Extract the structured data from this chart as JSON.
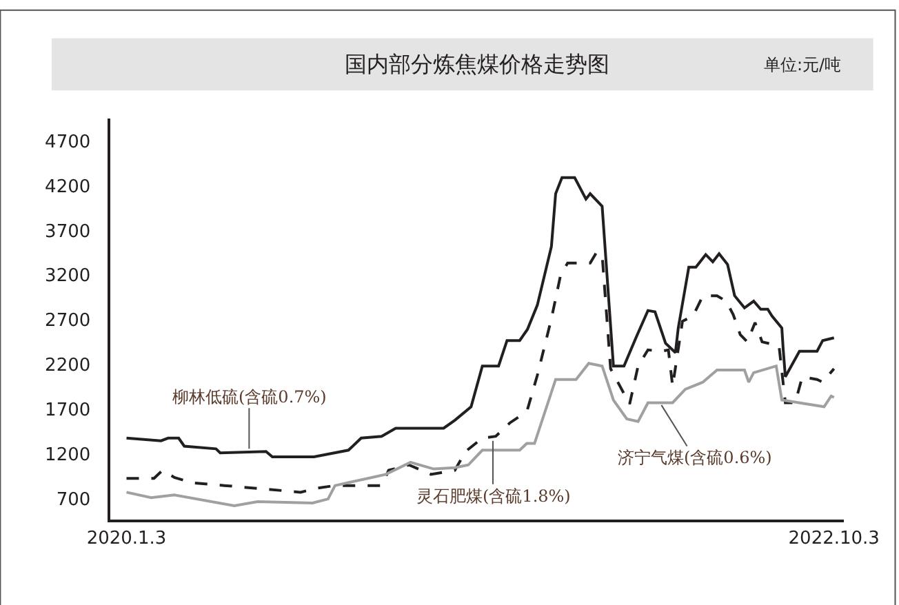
{
  "chart_data": {
    "type": "line",
    "title": "国内部分炼焦煤价格走势图",
    "annotations": [
      "单位:元/吨",
      {
        "text": "柳林低硫(含硫0.7%)",
        "x": "2020-06-25",
        "y": 1230
      },
      {
        "text": "灵石肥煤(含硫1.8%)",
        "x": "2021-06-06",
        "y": 1380
      },
      {
        "text": "济宁气煤(含硫0.6%)",
        "x": "2022-01-29",
        "y": 1775
      }
    ],
    "series": [
      {
        "color": "#231f20",
        "line_style": "solid",
        "x": [
          "2020-01-03",
          "2020-02-21",
          "2020-03-02",
          "2020-03-17",
          "2020-03-25",
          "2020-05-09",
          "2020-05-15",
          "2020-07-19",
          "2020-07-28",
          "2020-09-25",
          "2020-11-13",
          "2020-12-01",
          "2020-12-30",
          "2021-01-19",
          "2021-03-28",
          "2021-04-13",
          "2021-05-06",
          "2021-05-22",
          "2021-06-14",
          "2021-06-26",
          "2021-07-14",
          "2021-07-25",
          "2021-08-08",
          "2021-08-28",
          "2021-09-03",
          "2021-09-12",
          "2021-09-30",
          "2021-10-16",
          "2021-10-22",
          "2021-11-08",
          "2021-11-24",
          "2021-12-09",
          "2021-12-27",
          "2022-01-12",
          "2022-01-22",
          "2022-02-06",
          "2022-02-20",
          "2022-02-24",
          "2022-03-11",
          "2022-03-21",
          "2022-04-04",
          "2022-04-14",
          "2022-04-23",
          "2022-05-05",
          "2022-05-15",
          "2022-05-29",
          "2022-06-11",
          "2022-06-21",
          "2022-07-01",
          "2022-07-07",
          "2022-07-21",
          "2022-07-23",
          "2022-07-26",
          "2022-08-15",
          "2022-09-09",
          "2022-09-17",
          "2022-10-03"
        ],
        "values": [
          1380,
          1350,
          1380,
          1380,
          1290,
          1260,
          1215,
          1230,
          1170,
          1170,
          1245,
          1380,
          1400,
          1490,
          1490,
          1580,
          1730,
          2185,
          2185,
          2470,
          2470,
          2595,
          2865,
          3520,
          4110,
          4290,
          4290,
          4050,
          4110,
          3970,
          2185,
          2185,
          2520,
          2805,
          2790,
          2440,
          2335,
          2610,
          3290,
          3290,
          3430,
          3350,
          3440,
          3320,
          2970,
          2835,
          2910,
          2820,
          2820,
          2745,
          2610,
          2365,
          2065,
          2350,
          2350,
          2470,
          2500
        ]
      },
      {
        "color": "#231f20",
        "line_style": "dashed",
        "x": [
          "2020-01-03",
          "2020-02-11",
          "2020-02-23",
          "2020-03-11",
          "2020-04-06",
          "2020-05-21",
          "2020-07-26",
          "2020-09-06",
          "2020-09-29",
          "2020-10-25",
          "2020-12-30",
          "2021-01-09",
          "2021-02-07",
          "2021-03-10",
          "2021-04-13",
          "2021-04-28",
          "2021-05-22",
          "2021-06-10",
          "2021-06-30",
          "2021-07-20",
          "2021-07-25",
          "2021-08-08",
          "2021-08-28",
          "2021-09-10",
          "2021-09-20",
          "2021-10-22",
          "2021-10-31",
          "2021-11-08",
          "2021-11-20",
          "2021-12-17",
          "2021-12-29",
          "2022-01-12",
          "2022-01-31",
          "2022-02-10",
          "2022-02-16",
          "2022-03-02",
          "2022-03-17",
          "2022-03-31",
          "2022-04-20",
          "2022-05-03",
          "2022-05-13",
          "2022-05-23",
          "2022-06-02",
          "2022-06-13",
          "2022-06-23",
          "2022-07-17",
          "2022-07-26",
          "2022-08-09",
          "2022-08-19",
          "2022-09-09",
          "2022-09-17",
          "2022-10-03"
        ],
        "values": [
          930,
          930,
          1020,
          940,
          880,
          850,
          805,
          775,
          820,
          850,
          850,
          1020,
          1080,
          975,
          1020,
          1230,
          1380,
          1400,
          1550,
          1655,
          1700,
          2080,
          2715,
          3200,
          3335,
          3335,
          3455,
          3425,
          2155,
          1760,
          2185,
          2365,
          2350,
          2365,
          1960,
          2685,
          2745,
          2970,
          2970,
          2910,
          2760,
          2535,
          2455,
          2670,
          2455,
          2410,
          1775,
          1775,
          2065,
          2035,
          2005,
          2155
        ]
      },
      {
        "color": "#a0a0a0",
        "line_style": "solid",
        "x": [
          "2020-01-03",
          "2020-02-07",
          "2020-03-11",
          "2020-06-04",
          "2020-07-07",
          "2020-09-23",
          "2020-10-15",
          "2020-10-25",
          "2020-12-16",
          "2021-01-05",
          "2021-02-09",
          "2021-03-14",
          "2021-04-13",
          "2021-05-02",
          "2021-05-22",
          "2021-07-14",
          "2021-07-24",
          "2021-08-04",
          "2021-09-03",
          "2021-10-02",
          "2021-10-20",
          "2021-11-08",
          "2021-11-24",
          "2021-12-13",
          "2021-12-29",
          "2022-01-12",
          "2022-02-16",
          "2022-03-06",
          "2022-03-31",
          "2022-04-20",
          "2022-05-29",
          "2022-06-04",
          "2022-06-11",
          "2022-07-13",
          "2022-07-21",
          "2022-09-19",
          "2022-09-29",
          "2022-10-03"
        ],
        "values": [
          775,
          715,
          745,
          625,
          670,
          655,
          700,
          850,
          940,
          975,
          1110,
          1035,
          1050,
          1080,
          1245,
          1245,
          1320,
          1320,
          2035,
          2035,
          2215,
          2185,
          1805,
          1595,
          1565,
          1775,
          1775,
          1925,
          2005,
          2140,
          2140,
          2005,
          2110,
          2185,
          1805,
          1730,
          1850,
          1835
        ]
      }
    ],
    "xlim": [
      "2019-12-11",
      "2022-10-17"
    ],
    "xticks": [
      {
        "value": "2020-01-03",
        "label": "2020.1.3"
      },
      {
        "value": "2022-10-03",
        "label": "2022.10.3"
      }
    ],
    "ylim": [
      470,
      4950
    ],
    "yticks": [
      700,
      1200,
      1700,
      2200,
      2700,
      3200,
      3700,
      4200,
      4700
    ],
    "marker": "none"
  }
}
